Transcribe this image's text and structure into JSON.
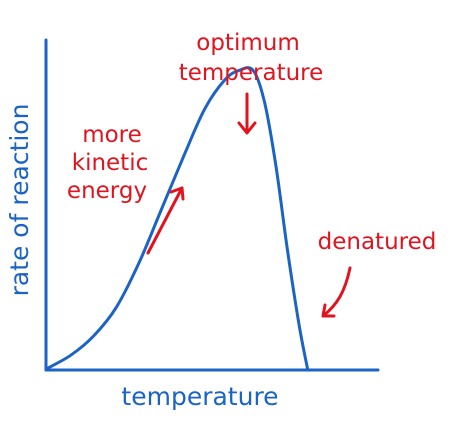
{
  "chart_data": {
    "type": "line",
    "xlabel": "temperature",
    "ylabel": "rate of reaction",
    "colors": {
      "axis": "#1b63c4",
      "curve": "#1b63c4",
      "annotation": "#e0141e"
    },
    "grid": false,
    "ticks": false,
    "x_range": [
      0,
      100
    ],
    "y_range": [
      0,
      100
    ],
    "series": [
      {
        "points": [
          [
            0,
            0
          ],
          [
            8,
            4
          ],
          [
            16,
            10
          ],
          [
            24,
            19
          ],
          [
            32,
            33
          ],
          [
            40,
            50
          ],
          [
            48,
            67
          ],
          [
            55,
            81
          ],
          [
            62,
            90
          ],
          [
            67,
            93
          ],
          [
            72,
            93
          ],
          [
            76,
            83
          ],
          [
            80,
            63
          ],
          [
            84,
            37
          ],
          [
            88,
            14
          ],
          [
            91,
            0
          ]
        ]
      }
    ],
    "annotations": [
      {
        "id": "kinetic",
        "lines": [
          "more",
          "kinetic",
          "energy"
        ]
      },
      {
        "id": "optimum",
        "lines": [
          "optimum",
          "temperature"
        ]
      },
      {
        "id": "denatured",
        "lines": [
          "denatured"
        ]
      }
    ]
  }
}
